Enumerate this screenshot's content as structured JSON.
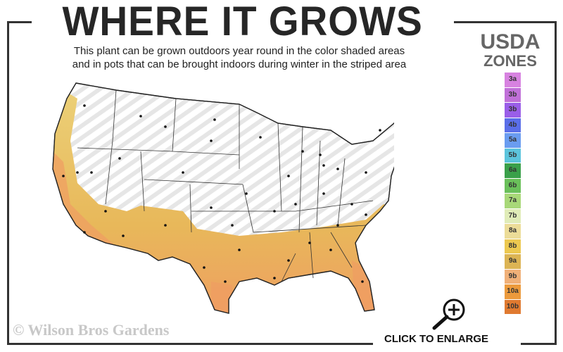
{
  "header": {
    "title": "WHERE IT GROWS",
    "subtitle_line1": "This plant can be grown outdoors year round in the color shaded areas",
    "subtitle_line2": "and in pots that can be brought indoors during winter in the striped area"
  },
  "legend": {
    "title_line1": "USDA",
    "title_line2": "ZONES",
    "zones": [
      {
        "label": "3a",
        "color": "#d782e0"
      },
      {
        "label": "3b",
        "color": "#c070d8"
      },
      {
        "label": "3b",
        "color": "#9a5ee8"
      },
      {
        "label": "4b",
        "color": "#5a6ee8"
      },
      {
        "label": "5a",
        "color": "#6a9cf0"
      },
      {
        "label": "5b",
        "color": "#5cc4dc"
      },
      {
        "label": "6a",
        "color": "#3aa04a"
      },
      {
        "label": "6b",
        "color": "#6ac05a"
      },
      {
        "label": "7a",
        "color": "#a8d878"
      },
      {
        "label": "7b",
        "color": "#e0ecb8"
      },
      {
        "label": "8a",
        "color": "#ecdc98"
      },
      {
        "label": "8b",
        "color": "#ecc850"
      },
      {
        "label": "9a",
        "color": "#dcb454"
      },
      {
        "label": "9b",
        "color": "#f0b078"
      },
      {
        "label": "10a",
        "color": "#ec9a3c"
      },
      {
        "label": "10b",
        "color": "#e07a30"
      }
    ]
  },
  "map": {
    "shaded_zone_colors": [
      "#ecd27a",
      "#e8b85a",
      "#ef9c62"
    ],
    "striped_area_color": "#e6e6e6"
  },
  "footer": {
    "copyright": "© Wilson Bros Gardens",
    "enlarge_label": "CLICK TO ENLARGE",
    "enlarge_icon": "magnifier-plus-icon"
  }
}
